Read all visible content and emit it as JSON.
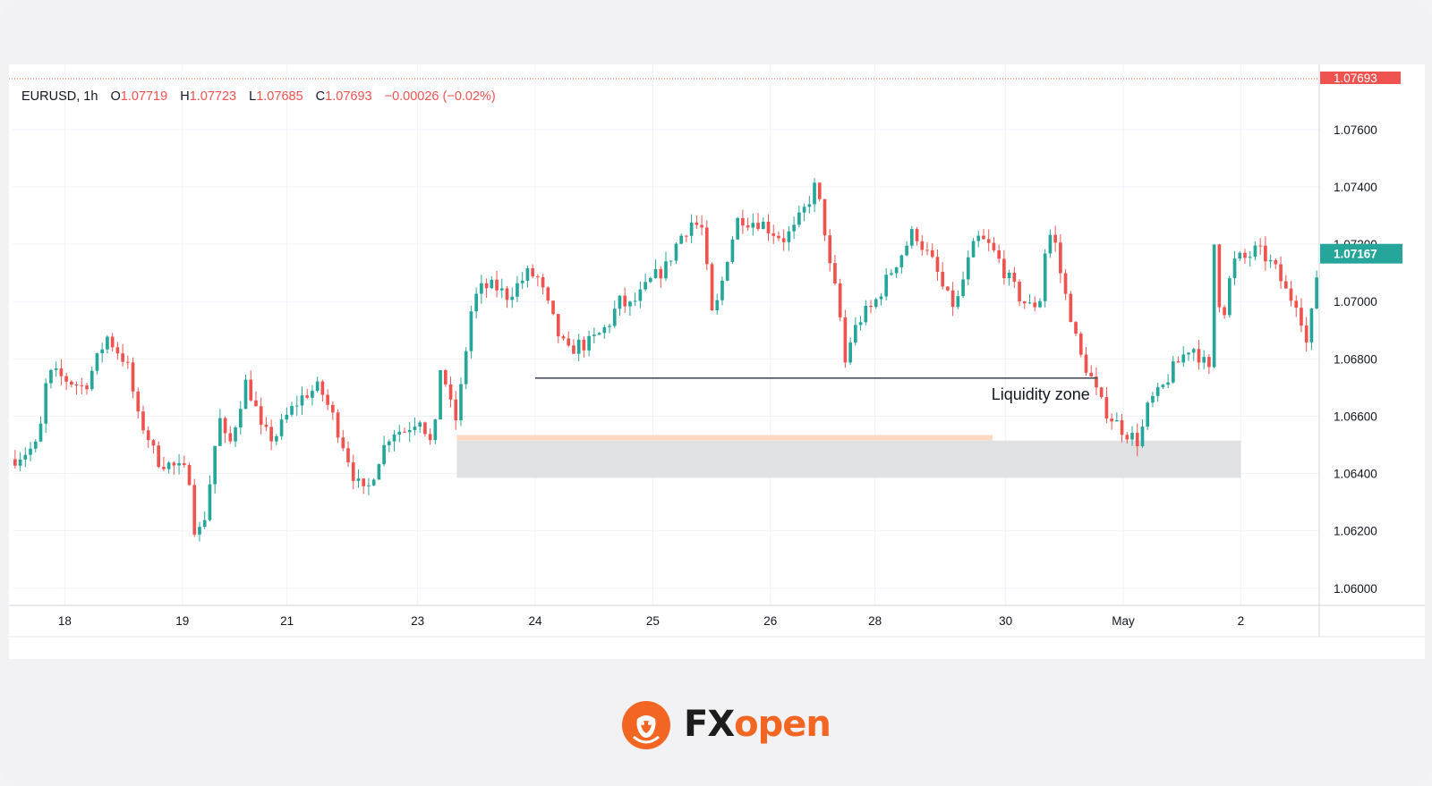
{
  "chart_data": {
    "type": "candlestick",
    "symbol": "EURUSD",
    "interval": "1h",
    "ohlc_header": {
      "o_label": "O",
      "o": "1.07719",
      "h_label": "H",
      "h": "1.07723",
      "l_label": "L",
      "l": "1.07685",
      "c_label": "C",
      "c": "1.07693",
      "change": "−0.00026 (−0.02%)"
    },
    "ylim": [
      1.0594,
      1.0779
    ],
    "y_ticks": [
      "1.06000",
      "1.06200",
      "1.06400",
      "1.06600",
      "1.06800",
      "1.07000",
      "1.07200",
      "1.07400",
      "1.07600"
    ],
    "x_ticks": [
      {
        "label": "18",
        "pos": 0.04
      },
      {
        "label": "19",
        "pos": 0.13
      },
      {
        "label": "21",
        "pos": 0.21
      },
      {
        "label": "23",
        "pos": 0.31
      },
      {
        "label": "24",
        "pos": 0.4
      },
      {
        "label": "25",
        "pos": 0.49
      },
      {
        "label": "26",
        "pos": 0.58
      },
      {
        "label": "28",
        "pos": 0.66
      },
      {
        "label": "30",
        "pos": 0.76
      },
      {
        "label": "May",
        "pos": 0.85
      },
      {
        "label": "2",
        "pos": 0.94
      }
    ],
    "price_labels": {
      "top": {
        "value": 1.07693,
        "text": "1.07693",
        "color": "#ef5350"
      },
      "current": {
        "value": 1.07167,
        "text": "1.07167",
        "color": "#26a69a"
      }
    },
    "up_color": "#26a69a",
    "down_color": "#ef5350",
    "path": [
      [
        0.0,
        1.0645
      ],
      [
        0.02,
        1.065
      ],
      [
        0.025,
        1.067
      ],
      [
        0.03,
        1.0675
      ],
      [
        0.045,
        1.0672
      ],
      [
        0.055,
        1.067
      ],
      [
        0.065,
        1.068
      ],
      [
        0.072,
        1.0688
      ],
      [
        0.085,
        1.068
      ],
      [
        0.09,
        1.0675
      ],
      [
        0.095,
        1.066
      ],
      [
        0.102,
        1.0655
      ],
      [
        0.11,
        1.0645
      ],
      [
        0.125,
        1.0642
      ],
      [
        0.135,
        1.064
      ],
      [
        0.14,
        1.0618
      ],
      [
        0.146,
        1.0622
      ],
      [
        0.152,
        1.064
      ],
      [
        0.158,
        1.066
      ],
      [
        0.165,
        1.0648
      ],
      [
        0.172,
        1.066
      ],
      [
        0.178,
        1.0672
      ],
      [
        0.185,
        1.0665
      ],
      [
        0.19,
        1.0655
      ],
      [
        0.2,
        1.0652
      ],
      [
        0.21,
        1.066
      ],
      [
        0.218,
        1.0665
      ],
      [
        0.225,
        1.0668
      ],
      [
        0.235,
        1.067
      ],
      [
        0.245,
        1.066
      ],
      [
        0.255,
        1.0648
      ],
      [
        0.262,
        1.0638
      ],
      [
        0.27,
        1.0632
      ],
      [
        0.28,
        1.0645
      ],
      [
        0.29,
        1.0655
      ],
      [
        0.3,
        1.0655
      ],
      [
        0.312,
        1.066
      ],
      [
        0.322,
        1.0648
      ],
      [
        0.328,
        1.068
      ],
      [
        0.334,
        1.0665
      ],
      [
        0.34,
        1.0658
      ],
      [
        0.346,
        1.068
      ],
      [
        0.352,
        1.07
      ],
      [
        0.36,
        1.0705
      ],
      [
        0.37,
        1.0705
      ],
      [
        0.378,
        1.0702
      ],
      [
        0.385,
        1.0705
      ],
      [
        0.395,
        1.071
      ],
      [
        0.402,
        1.0708
      ],
      [
        0.41,
        1.0698
      ],
      [
        0.418,
        1.0688
      ],
      [
        0.425,
        1.0682
      ],
      [
        0.432,
        1.0685
      ],
      [
        0.44,
        1.0685
      ],
      [
        0.448,
        1.0688
      ],
      [
        0.456,
        1.0692
      ],
      [
        0.464,
        1.07
      ],
      [
        0.472,
        1.0698
      ],
      [
        0.48,
        1.0702
      ],
      [
        0.49,
        1.0708
      ],
      [
        0.5,
        1.0712
      ],
      [
        0.51,
        1.0722
      ],
      [
        0.52,
        1.0728
      ],
      [
        0.528,
        1.0725
      ],
      [
        0.535,
        1.0695
      ],
      [
        0.54,
        1.07
      ],
      [
        0.548,
        1.0718
      ],
      [
        0.556,
        1.073
      ],
      [
        0.564,
        1.0728
      ],
      [
        0.572,
        1.0728
      ],
      [
        0.58,
        1.0725
      ],
      [
        0.59,
        1.0722
      ],
      [
        0.598,
        1.0725
      ],
      [
        0.606,
        1.0732
      ],
      [
        0.614,
        1.074
      ],
      [
        0.62,
        1.073
      ],
      [
        0.626,
        1.071
      ],
      [
        0.632,
        1.07
      ],
      [
        0.637,
        1.0678
      ],
      [
        0.642,
        1.0688
      ],
      [
        0.65,
        1.0695
      ],
      [
        0.658,
        1.0698
      ],
      [
        0.666,
        1.0705
      ],
      [
        0.674,
        1.0712
      ],
      [
        0.682,
        1.0718
      ],
      [
        0.69,
        1.0725
      ],
      [
        0.698,
        1.0718
      ],
      [
        0.706,
        1.0712
      ],
      [
        0.714,
        1.0702
      ],
      [
        0.722,
        1.0698
      ],
      [
        0.73,
        1.0712
      ],
      [
        0.738,
        1.0722
      ],
      [
        0.746,
        1.072
      ],
      [
        0.754,
        1.0715
      ],
      [
        0.762,
        1.0708
      ],
      [
        0.77,
        1.0702
      ],
      [
        0.778,
        1.0698
      ],
      [
        0.786,
        1.07
      ],
      [
        0.792,
        1.0725
      ],
      [
        0.798,
        1.072
      ],
      [
        0.804,
        1.0705
      ],
      [
        0.81,
        1.0695
      ],
      [
        0.816,
        1.0682
      ],
      [
        0.824,
        1.0675
      ],
      [
        0.832,
        1.0665
      ],
      [
        0.84,
        1.066
      ],
      [
        0.848,
        1.0656
      ],
      [
        0.856,
        1.0653
      ],
      [
        0.862,
        1.0651
      ],
      [
        0.87,
        1.0665
      ],
      [
        0.878,
        1.0668
      ],
      [
        0.886,
        1.0675
      ],
      [
        0.894,
        1.068
      ],
      [
        0.902,
        1.0685
      ],
      [
        0.91,
        1.068
      ],
      [
        0.916,
        1.0675
      ],
      [
        0.92,
        1.0725
      ],
      [
        0.925,
        1.069
      ],
      [
        0.93,
        1.0705
      ],
      [
        0.936,
        1.0715
      ],
      [
        0.944,
        1.0715
      ],
      [
        0.952,
        1.0718
      ],
      [
        0.96,
        1.0715
      ],
      [
        0.968,
        1.071
      ],
      [
        0.976,
        1.0702
      ],
      [
        0.984,
        1.07
      ],
      [
        0.99,
        1.0685
      ],
      [
        0.996,
        1.07
      ],
      [
        1.0,
        1.0718
      ]
    ],
    "annotations": {
      "liquidity_line": {
        "price": 1.06733,
        "x0": 0.4,
        "x1": 0.83
      },
      "liquidity_label": "Liquidity zone",
      "zone": {
        "price_top": 1.06515,
        "price_bottom": 1.06385,
        "x0": 0.34,
        "x1": 0.94,
        "color": "#e0e1e3"
      },
      "orange_band": {
        "price": 1.06525,
        "x0": 0.34,
        "x1": 0.75,
        "color": "#ffd9c2"
      }
    }
  },
  "brand": {
    "fx": "FX",
    "open": "open",
    "orange": "#f26522"
  }
}
